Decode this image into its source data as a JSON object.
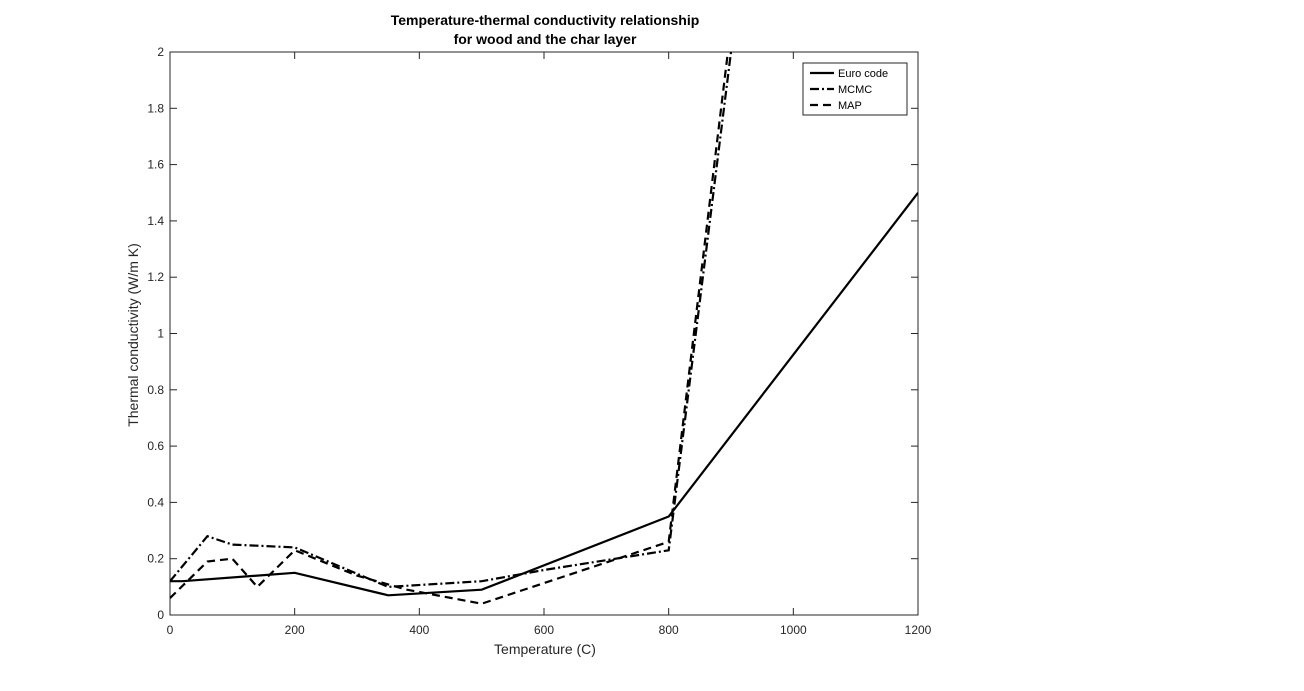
{
  "chart_data": {
    "type": "line",
    "title": [
      "Temperature-thermal conductivity relationship",
      "for wood and the char layer"
    ],
    "xlabel": "Temperature (C)",
    "ylabel": "Thermal conductivity (W/m K)",
    "xlim": [
      0,
      1200
    ],
    "ylim": [
      0,
      2
    ],
    "xticks": [
      0,
      200,
      400,
      600,
      800,
      1000,
      1200
    ],
    "yticks": [
      0,
      0.2,
      0.4,
      0.6,
      0.8,
      1,
      1.2,
      1.4,
      1.6,
      1.8,
      2
    ],
    "xtick_labels": [
      "0",
      "200",
      "400",
      "600",
      "800",
      "1000",
      "1200"
    ],
    "ytick_labels": [
      "0",
      "0.2",
      "0.4",
      "0.6",
      "0.8",
      "1",
      "1.2",
      "1.4",
      "1.6",
      "1.8",
      "2"
    ],
    "grid": false,
    "legend_position": "top-right",
    "series": [
      {
        "name": "Euro code",
        "style": "solid",
        "color": "#000000",
        "x": [
          0,
          20,
          200,
          350,
          500,
          800,
          1200
        ],
        "y": [
          0.12,
          0.12,
          0.15,
          0.07,
          0.09,
          0.35,
          1.5
        ]
      },
      {
        "name": "MCMC",
        "style": "dashdot",
        "color": "#000000",
        "x": [
          0,
          60,
          100,
          200,
          350,
          500,
          600,
          800,
          900
        ],
        "y": [
          0.12,
          0.28,
          0.25,
          0.24,
          0.1,
          0.12,
          0.16,
          0.23,
          2.0
        ]
      },
      {
        "name": "MAP",
        "style": "dashed",
        "color": "#000000",
        "x": [
          0,
          60,
          100,
          140,
          200,
          300,
          380,
          500,
          800,
          895
        ],
        "y": [
          0.06,
          0.19,
          0.2,
          0.1,
          0.23,
          0.14,
          0.09,
          0.04,
          0.26,
          2.0
        ]
      }
    ]
  }
}
